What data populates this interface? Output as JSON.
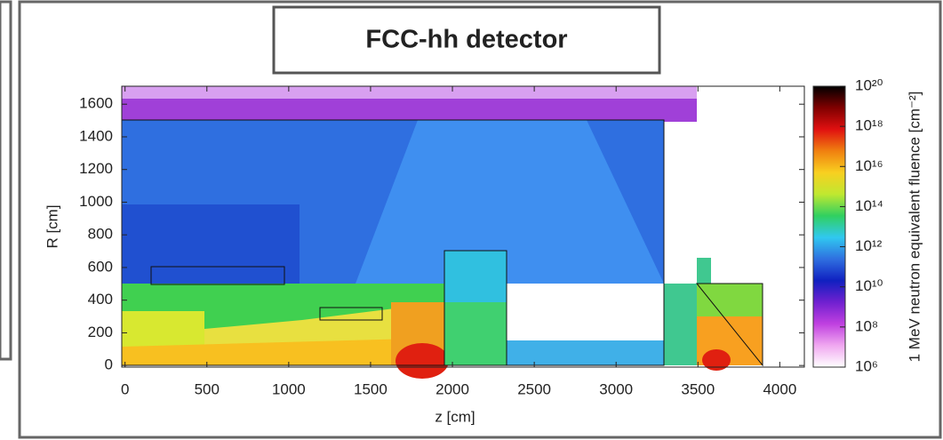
{
  "chart_data": {
    "type": "heatmap",
    "title": "FCC-hh detector",
    "xlabel": "z [cm]",
    "ylabel": "R [cm]",
    "xlim": [
      -20,
      4150
    ],
    "xticks": [
      0,
      500,
      1000,
      1500,
      2000,
      2500,
      3000,
      3500,
      4000
    ],
    "ylim": [
      -10,
      1710
    ],
    "yticks": [
      0,
      200,
      400,
      600,
      800,
      1000,
      1200,
      1400,
      1600
    ],
    "colorbar": {
      "label": "1 MeV neutron equivalent fluence [cm⁻²]",
      "log": true,
      "lim": [
        1000000.0,
        1e+20
      ],
      "ticks": [
        {
          "value": 1000000.0,
          "label": "10⁶"
        },
        {
          "value": 100000000.0,
          "label": "10⁸"
        },
        {
          "value": 10000000000.0,
          "label": "10¹⁰"
        },
        {
          "value": 1000000000000.0,
          "label": "10¹²"
        },
        {
          "value": 100000000000000.0,
          "label": "10¹⁴"
        },
        {
          "value": 1e+16,
          "label": "10¹⁶"
        },
        {
          "value": 1e+18,
          "label": "10¹⁸"
        },
        {
          "value": 1e+20,
          "label": "10²⁰"
        }
      ],
      "colors": [
        "#ffffff",
        "#f0a8f0",
        "#c040e0",
        "#7020d0",
        "#1020c0",
        "#2f6fe0",
        "#30c8f0",
        "#30d060",
        "#c0e830",
        "#f8d020",
        "#f08010",
        "#e01010",
        "#800000",
        "#000000"
      ]
    }
  }
}
